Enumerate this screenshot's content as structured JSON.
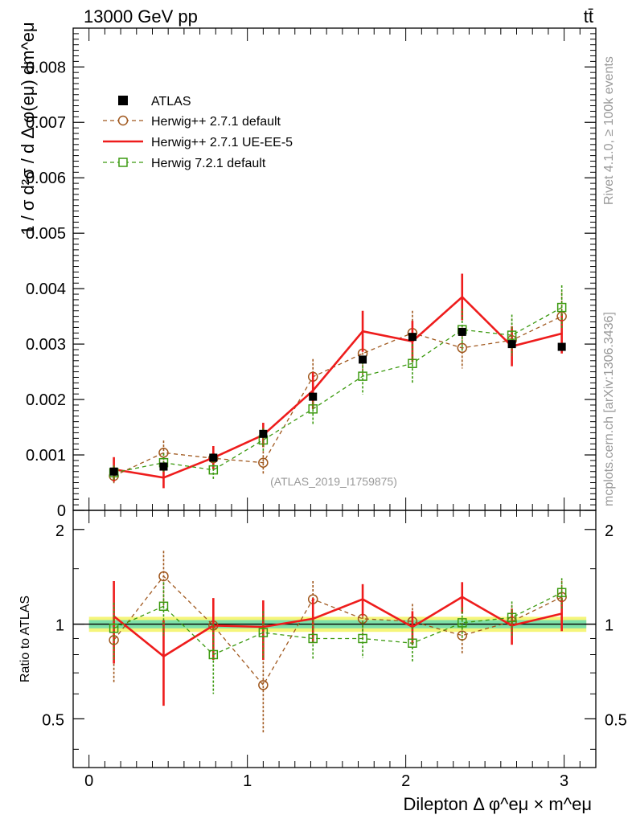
{
  "header": {
    "left": "13000 GeV pp",
    "right": "tt̄"
  },
  "side_labels": {
    "rivet": "Rivet 4.1.0, ≥ 100k events",
    "mcplots": "mcplots.cern.ch [arXiv:1306.3436]"
  },
  "colors": {
    "atlas": "#000000",
    "herwig271_default": "#a0581e",
    "herwig271_ueee5": "#ee1c1c",
    "herwig721_default": "#3c9a10",
    "band_inner": "#7ee0a8",
    "band_outer": "#f5f57a"
  },
  "chart_data": [
    {
      "type": "line",
      "title": "(ATLAS_2019_I1759875)",
      "xlabel": "Dilepton Δ φ^eμ × m^eμ",
      "ylabel": "1 / σ d²σ / d Δ φ(eμ) dm^eμ",
      "xlim": [
        -0.1,
        3.2
      ],
      "ylim": [
        0,
        0.0087
      ],
      "yticks": [
        0,
        0.001,
        0.002,
        0.003,
        0.004,
        0.005,
        0.006,
        0.007,
        0.008
      ],
      "ytick_labels": [
        "0",
        "0.001",
        "0.002",
        "0.003",
        "0.004",
        "0.005",
        "0.006",
        "0.007",
        "0.008"
      ],
      "x": [
        0.157,
        0.471,
        0.785,
        1.1,
        1.414,
        1.728,
        2.042,
        2.356,
        2.67,
        2.985
      ],
      "legend_position": "top-left",
      "series": [
        {
          "name": "ATLAS",
          "style": "markers",
          "values": [
            0.0007,
            0.00079,
            0.00095,
            0.00138,
            0.00205,
            0.00272,
            0.00313,
            0.00322,
            0.003,
            0.00295
          ],
          "errors": [
            2e-05,
            2e-05,
            2e-05,
            3e-05,
            4e-05,
            5e-05,
            5e-05,
            5e-05,
            5e-05,
            5e-05
          ]
        },
        {
          "name": "Herwig++ 2.7.1 default",
          "style": "dashed-circle",
          "values": [
            0.00062,
            0.00104,
            0.00094,
            0.00086,
            0.00241,
            0.00283,
            0.0032,
            0.00293,
            0.00307,
            0.0035
          ],
          "errors": [
            0.00013,
            0.00022,
            0.00018,
            0.00021,
            0.00032,
            0.00038,
            0.0004,
            0.00037,
            0.00039,
            0.00043
          ]
        },
        {
          "name": "Herwig++ 2.7.1 UE-EE-5",
          "style": "solid",
          "values": [
            0.00074,
            0.00059,
            0.00095,
            0.00136,
            0.00216,
            0.00323,
            0.00305,
            0.00385,
            0.00296,
            0.00319
          ],
          "errors": [
            0.00022,
            0.00019,
            0.00021,
            0.00022,
            0.00033,
            0.00037,
            0.00037,
            0.00042,
            0.00036,
            0.00036
          ]
        },
        {
          "name": "Herwig 7.2.1 default",
          "style": "dashed-square",
          "values": [
            0.00068,
            0.00086,
            0.00073,
            0.00127,
            0.00183,
            0.00242,
            0.00265,
            0.00326,
            0.00316,
            0.00366
          ],
          "errors": [
            0.00013,
            0.00017,
            0.00017,
            0.00021,
            0.00028,
            0.00033,
            0.00035,
            0.00038,
            0.00037,
            0.0004
          ]
        }
      ]
    },
    {
      "type": "line",
      "title": "",
      "xlabel": "Dilepton Δ φ^eμ × m^eμ",
      "ylabel": "Ratio to ATLAS",
      "xlim": [
        -0.1,
        3.2
      ],
      "ylim": [
        0.35,
        2.3
      ],
      "yticks": [
        0.5,
        1,
        2
      ],
      "ytick_labels": [
        "0.5",
        "1",
        "2"
      ],
      "xticks": [
        0,
        1,
        2,
        3
      ],
      "xtick_labels": [
        "0",
        "1",
        "2",
        "3"
      ],
      "x": [
        0.157,
        0.471,
        0.785,
        1.1,
        1.414,
        1.728,
        2.042,
        2.356,
        2.67,
        2.985
      ],
      "band_inner_halfwidth": 0.03,
      "band_outer_halfwidth": 0.055,
      "series": [
        {
          "name": "Herwig++ 2.7.1 default",
          "values": [
            0.89,
            1.42,
            0.99,
            0.64,
            1.2,
            1.04,
            1.02,
            0.92,
            1.02,
            1.22
          ],
          "errors": [
            0.24,
            0.29,
            0.2,
            0.19,
            0.17,
            0.15,
            0.14,
            0.12,
            0.13,
            0.15
          ]
        },
        {
          "name": "Herwig++ 2.7.1 UE-EE-5",
          "values": [
            1.06,
            0.79,
            0.99,
            0.98,
            1.04,
            1.2,
            0.98,
            1.22,
            0.99,
            1.08
          ],
          "errors": [
            0.31,
            0.24,
            0.22,
            0.21,
            0.17,
            0.14,
            0.12,
            0.14,
            0.13,
            0.13
          ]
        },
        {
          "name": "Herwig 7.2.1 default",
          "values": [
            0.97,
            1.14,
            0.8,
            0.94,
            0.9,
            0.9,
            0.87,
            1.01,
            1.05,
            1.26
          ],
          "errors": [
            0.2,
            0.22,
            0.2,
            0.16,
            0.13,
            0.12,
            0.11,
            0.12,
            0.13,
            0.14
          ]
        }
      ]
    }
  ]
}
